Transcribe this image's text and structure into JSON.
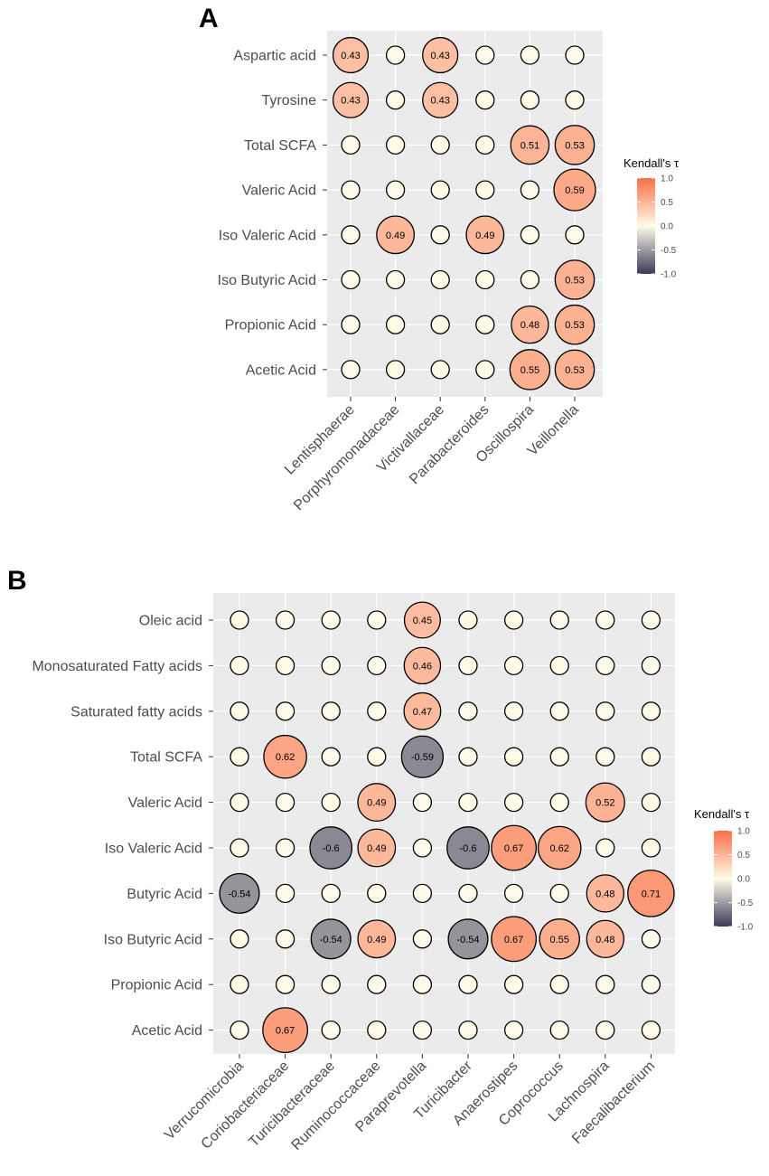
{
  "colors": {
    "negative": "#3d3a5a",
    "neutral": "#fffbe8",
    "positive": "#fa7047",
    "panel_bg": "#ebebeb",
    "grid": "#ffffff"
  },
  "chart_data": [
    {
      "type": "heatmap",
      "panel": "A",
      "legend_title": "Kendall's τ",
      "legend_ticks": [
        "1.0",
        "0.5",
        "0.0",
        "-0.5",
        "-1.0"
      ],
      "colorscale_range": [
        -1,
        1
      ],
      "rows": [
        "Aspartic acid",
        "Tyrosine",
        "Total SCFA",
        "Valeric Acid",
        "Iso Valeric Acid",
        "Iso Butyric Acid",
        "Propionic Acid",
        "Acetic Acid"
      ],
      "cols": [
        "Lentisphaerae",
        "Porphyromonadaceae",
        "Victivallaceae",
        "Parabacteroides",
        "Oscillospira",
        "Veillonella"
      ],
      "values": [
        [
          0.43,
          0,
          0.43,
          0,
          0,
          0
        ],
        [
          0.43,
          0,
          0.43,
          0,
          0,
          0
        ],
        [
          0,
          0,
          0,
          0,
          0.51,
          0.53
        ],
        [
          0,
          0,
          0,
          0,
          0,
          0.59
        ],
        [
          0,
          0.49,
          0,
          0.49,
          0,
          0
        ],
        [
          0,
          0,
          0,
          0,
          0,
          0.53
        ],
        [
          0,
          0,
          0,
          0,
          0.48,
          0.53
        ],
        [
          0,
          0,
          0,
          0,
          0.55,
          0.53
        ]
      ]
    },
    {
      "type": "heatmap",
      "panel": "B",
      "legend_title": "Kendall's τ",
      "legend_ticks": [
        "1.0",
        "0.5",
        "0.0",
        "-0.5",
        "-1.0"
      ],
      "colorscale_range": [
        -1,
        1
      ],
      "rows": [
        "Oleic acid",
        "Monosaturated Fatty acids",
        "Saturated fatty acids",
        "Total SCFA",
        "Valeric Acid",
        "Iso Valeric Acid",
        "Butyric Acid",
        "Iso Butyric Acid",
        "Propionic Acid",
        "Acetic Acid"
      ],
      "cols": [
        "Verrucomicrobia",
        "Coriobacteriaceae",
        "Turicibacteraceae",
        "Ruminococcaceae",
        "Paraprevotella",
        "Turicibacter",
        "Anaerostipes",
        "Coprococcus",
        "Lachnospira",
        "Faecalibacterium"
      ],
      "values": [
        [
          0,
          0,
          0,
          0,
          0.45,
          0,
          0,
          0,
          0,
          0
        ],
        [
          0,
          0,
          0,
          0,
          0.46,
          0,
          0,
          0,
          0,
          0
        ],
        [
          0,
          0,
          0,
          0,
          0.47,
          0,
          0,
          0,
          0,
          0
        ],
        [
          0,
          0.62,
          0,
          0,
          -0.59,
          0,
          0,
          0,
          0,
          0
        ],
        [
          0,
          0,
          0,
          0.49,
          0,
          0,
          0,
          0,
          0.52,
          0
        ],
        [
          0,
          0,
          -0.6,
          0.49,
          0,
          -0.6,
          0.67,
          0.62,
          0,
          0
        ],
        [
          -0.54,
          0,
          0,
          0,
          0,
          0,
          0,
          0,
          0.48,
          0.71
        ],
        [
          0,
          0,
          -0.54,
          0.49,
          0,
          -0.54,
          0.67,
          0.55,
          0.48,
          0
        ],
        [
          0,
          0,
          0,
          0,
          0,
          0,
          0,
          0,
          0,
          0
        ],
        [
          0,
          0.67,
          0,
          0,
          0,
          0,
          0,
          0,
          0,
          0
        ]
      ]
    }
  ]
}
